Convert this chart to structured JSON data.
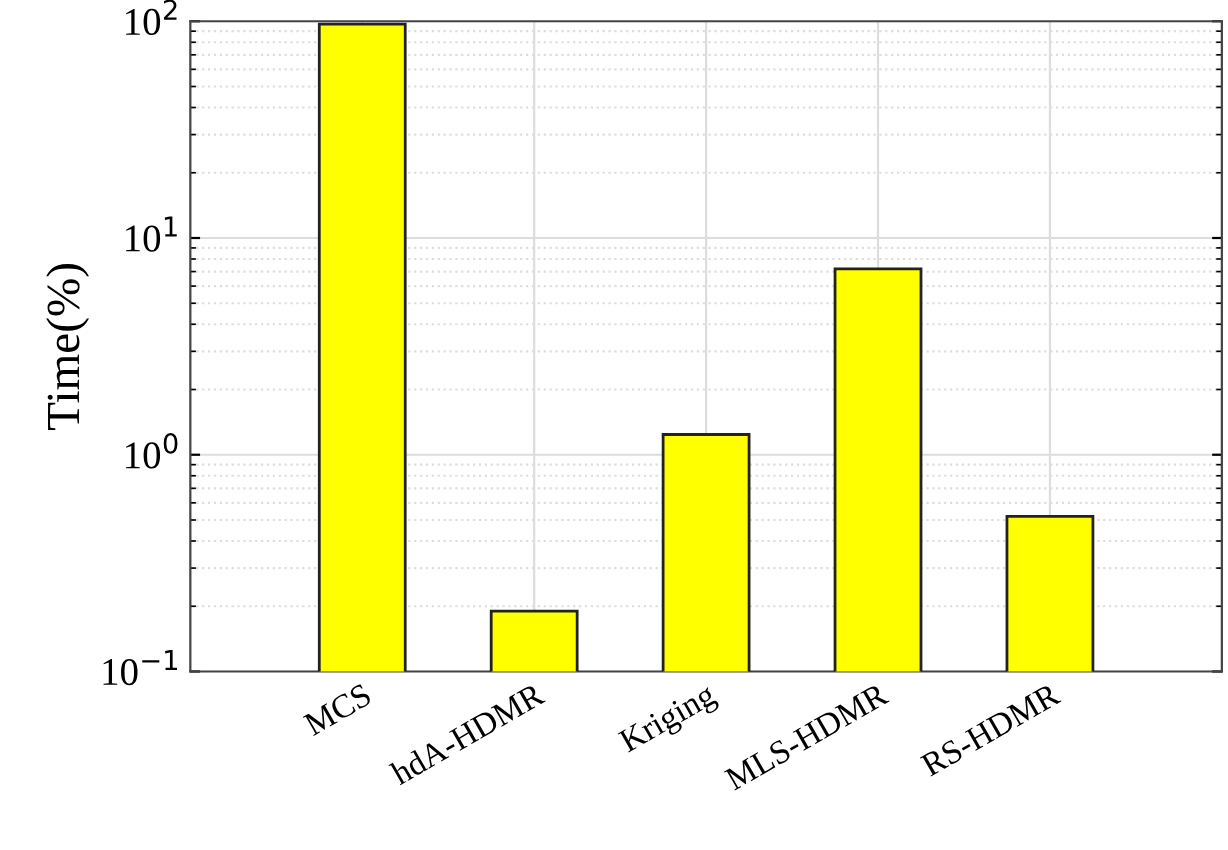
{
  "chart_data": {
    "type": "bar",
    "ylabel": "Time(%)",
    "categories": [
      "MCS",
      "hdA-HDMR",
      "Kriging",
      "MLS-HDMR",
      "RS-HDMR"
    ],
    "values": [
      97,
      0.19,
      1.24,
      7.2,
      0.52
    ],
    "color": "#ffff00",
    "log": true,
    "ylim": [
      0.1,
      100
    ],
    "yticks": [
      {
        "value": 0.1,
        "label": "10$^{−1}$"
      },
      {
        "value": 1,
        "label": "10$^{0}$"
      },
      {
        "value": 10,
        "label": "10$^{1}$"
      },
      {
        "value": 100,
        "label": "10$^{2}$"
      }
    ],
    "grid": true
  }
}
